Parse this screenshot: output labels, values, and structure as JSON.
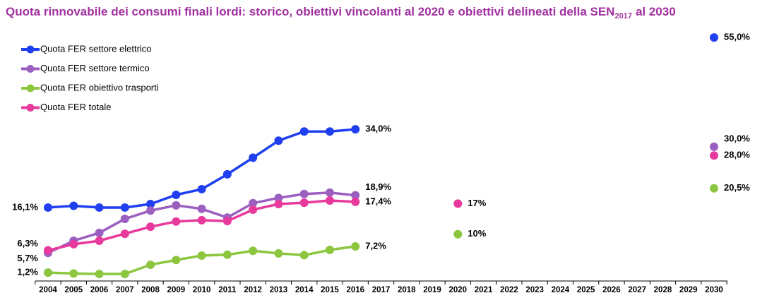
{
  "chart_data": {
    "type": "line",
    "title": "Quota rinnovabile dei consumi finali lordi: storico, obiettivi vincolanti al 2020 e obiettivi delineati della SEN",
    "title_subscript": "2017",
    "title_suffix": "al 2030",
    "categories": [
      "2004",
      "2005",
      "2006",
      "2007",
      "2008",
      "2009",
      "2010",
      "2011",
      "2012",
      "2013",
      "2014",
      "2015",
      "2016",
      "2017",
      "2018",
      "2019",
      "2020",
      "2021",
      "2022",
      "2023",
      "2024",
      "2025",
      "2026",
      "2027",
      "2028",
      "2029",
      "2030"
    ],
    "ylim": [
      0,
      60
    ],
    "legend": "top-left",
    "series": [
      {
        "name": "Quota FER settore elettrico",
        "color": "#1f3ff0",
        "values": [
          16.1,
          16.5,
          16.1,
          16.1,
          16.9,
          19.0,
          20.3,
          23.7,
          27.5,
          31.4,
          33.5,
          33.5,
          34.0,
          null,
          null,
          null,
          null,
          null,
          null,
          null,
          null,
          null,
          null,
          null,
          null,
          null,
          55.0
        ],
        "value_labels": [
          "16,1%",
          null,
          null,
          null,
          null,
          null,
          null,
          null,
          null,
          null,
          null,
          null,
          "34,0%",
          null,
          null,
          null,
          null,
          null,
          null,
          null,
          null,
          null,
          null,
          null,
          null,
          null,
          "55,0%"
        ]
      },
      {
        "name": "Quota FER settore termico",
        "color": "#9b5fc0",
        "values": [
          5.7,
          8.5,
          10.3,
          13.5,
          15.4,
          16.6,
          15.8,
          13.8,
          17.1,
          18.3,
          19.2,
          19.5,
          18.9,
          null,
          null,
          null,
          null,
          null,
          null,
          null,
          null,
          null,
          null,
          null,
          null,
          null,
          30.0
        ],
        "value_labels": [
          "5,7%",
          null,
          null,
          null,
          null,
          null,
          null,
          null,
          null,
          null,
          null,
          null,
          "18,9%",
          null,
          null,
          null,
          null,
          null,
          null,
          null,
          null,
          null,
          null,
          null,
          null,
          null,
          "30,0%"
        ]
      },
      {
        "name": "Quota FER obiettivo trasporti",
        "color": "#8cc63f",
        "values": [
          1.2,
          1.0,
          0.9,
          0.9,
          3.0,
          4.1,
          5.1,
          5.3,
          6.2,
          5.6,
          5.2,
          6.4,
          7.2,
          null,
          null,
          null,
          10,
          null,
          null,
          null,
          null,
          null,
          null,
          null,
          null,
          null,
          20.5
        ],
        "value_labels": [
          "1,2%",
          null,
          null,
          null,
          null,
          null,
          null,
          null,
          null,
          null,
          null,
          null,
          "7,2%",
          null,
          null,
          null,
          "10%",
          null,
          null,
          null,
          null,
          null,
          null,
          null,
          null,
          null,
          "20,5%"
        ]
      },
      {
        "name": "Quota FER totale",
        "color": "#e8399c",
        "values": [
          6.3,
          7.7,
          8.5,
          10.1,
          11.7,
          12.9,
          13.2,
          13.0,
          15.6,
          16.9,
          17.2,
          17.7,
          17.4,
          null,
          null,
          null,
          17,
          null,
          null,
          null,
          null,
          null,
          null,
          null,
          null,
          null,
          28.0
        ],
        "value_labels": [
          "6,3%",
          null,
          null,
          null,
          null,
          null,
          null,
          null,
          null,
          null,
          null,
          null,
          "17,4%",
          null,
          null,
          null,
          "17%",
          null,
          null,
          null,
          null,
          null,
          null,
          null,
          null,
          null,
          "28,0%"
        ]
      }
    ]
  }
}
